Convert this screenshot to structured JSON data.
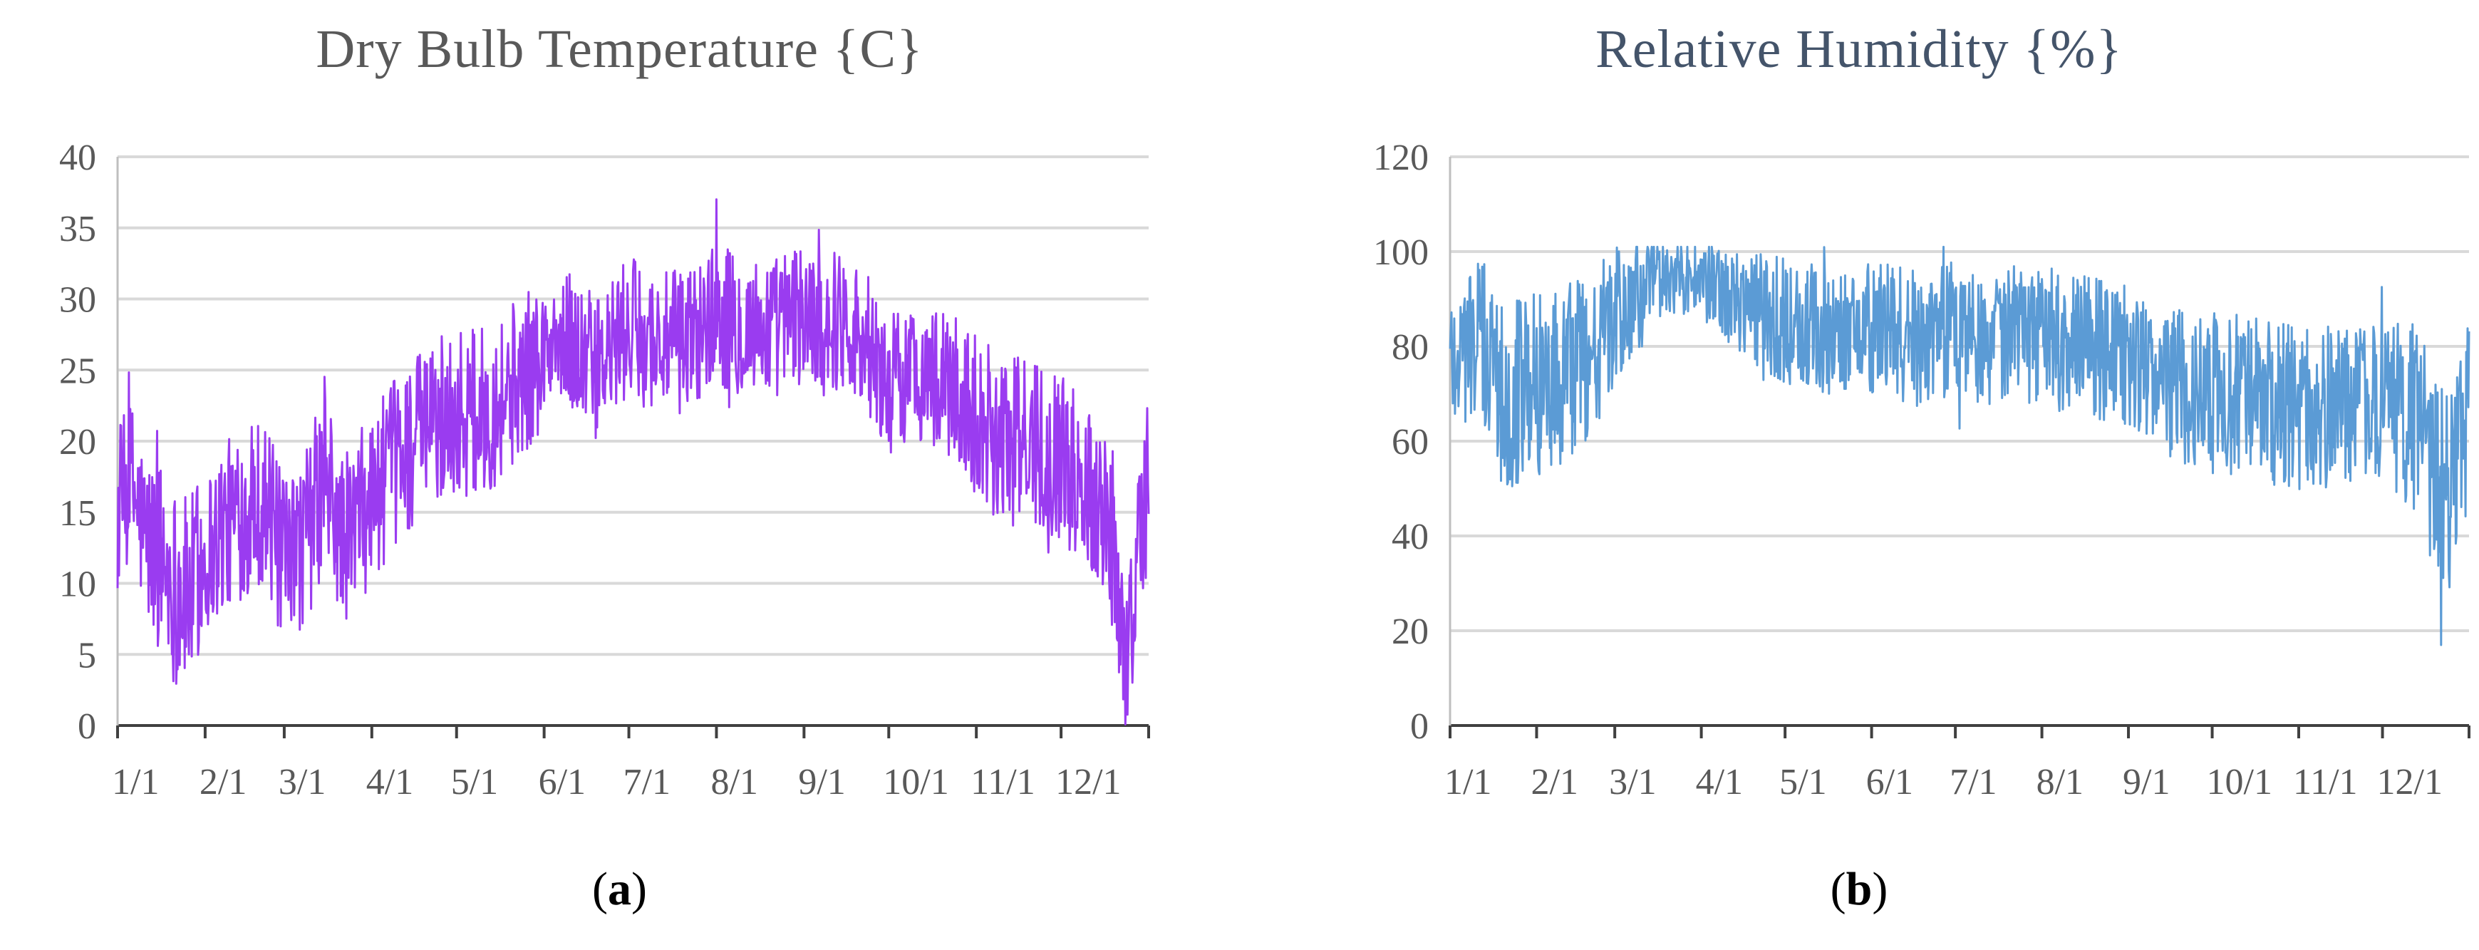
{
  "chart_data": [
    {
      "type": "line",
      "title": "Dry Bulb Temperature {C}",
      "caption_letter": "a",
      "xlabel": "",
      "ylabel": "",
      "ylim": [
        0,
        40
      ],
      "y_ticks": [
        0,
        5,
        10,
        15,
        20,
        25,
        30,
        35,
        40
      ],
      "x_tick_labels": [
        "1/1",
        "2/1",
        "3/1",
        "4/1",
        "5/1",
        "6/1",
        "7/1",
        "8/1",
        "9/1",
        "10/1",
        "11/1",
        "12/1"
      ],
      "x_tick_days": [
        0,
        31,
        59,
        90,
        120,
        151,
        181,
        212,
        243,
        273,
        304,
        334
      ],
      "x_range_days": [
        0,
        365
      ],
      "grid": "horizontal",
      "color": "#9a3cf0",
      "series": [
        {
          "x_days": [
            0,
            5,
            10,
            15,
            20,
            25,
            31,
            38,
            45,
            52,
            59,
            66,
            73,
            80,
            90,
            100,
            110,
            120,
            130,
            140,
            151,
            160,
            170,
            181,
            190,
            200,
            212,
            222,
            232,
            243,
            250,
            258,
            266,
            273,
            283,
            293,
            304,
            314,
            324,
            334,
            342,
            348,
            353,
            357,
            361,
            365
          ],
          "values": [
            15,
            17,
            13,
            12,
            10,
            9,
            12,
            14,
            15,
            16,
            11,
            13,
            17,
            13,
            16,
            19,
            21,
            22,
            22,
            24,
            26,
            27,
            25,
            28,
            27,
            27,
            29,
            28,
            28,
            29,
            28,
            29,
            26,
            24,
            25,
            24,
            22,
            20,
            20,
            19,
            17,
            16,
            12,
            4,
            12,
            17
          ],
          "spread": [
            6,
            6,
            6,
            7,
            7,
            7,
            6,
            6,
            6,
            6,
            6,
            6,
            7,
            6,
            6,
            6,
            6,
            6,
            6,
            6,
            5,
            5,
            5,
            5,
            5,
            5,
            5,
            5,
            5,
            5,
            5,
            5,
            5,
            5,
            5,
            5,
            6,
            6,
            6,
            6,
            6,
            6,
            6,
            5,
            6,
            6
          ],
          "peak_value": 37
        }
      ]
    },
    {
      "type": "line",
      "title": "Relative Humidity {%}",
      "caption_letter": "b",
      "xlabel": "",
      "ylabel": "",
      "ylim": [
        0,
        120
      ],
      "y_ticks": [
        0,
        20,
        40,
        60,
        80,
        100,
        120
      ],
      "x_tick_labels": [
        "1/1",
        "2/1",
        "3/1",
        "4/1",
        "5/1",
        "6/1",
        "7/1",
        "8/1",
        "9/1",
        "10/1",
        "11/1",
        "12/1"
      ],
      "x_tick_days": [
        0,
        31,
        59,
        90,
        120,
        151,
        181,
        212,
        243,
        273,
        304,
        334
      ],
      "x_range_days": [
        0,
        365
      ],
      "grid": "horizontal",
      "color": "#5b9bd5",
      "series": [
        {
          "x_days": [
            0,
            10,
            20,
            31,
            45,
            59,
            70,
            80,
            90,
            100,
            110,
            120,
            135,
            151,
            165,
            181,
            195,
            212,
            227,
            243,
            258,
            273,
            288,
            304,
            319,
            334,
            345,
            352,
            358,
            365
          ],
          "values": [
            78,
            82,
            70,
            72,
            75,
            85,
            92,
            95,
            94,
            90,
            88,
            85,
            83,
            84,
            82,
            84,
            82,
            82,
            80,
            78,
            72,
            70,
            70,
            66,
            68,
            68,
            65,
            55,
            50,
            65
          ],
          "spread": [
            16,
            18,
            20,
            20,
            19,
            16,
            12,
            8,
            8,
            10,
            12,
            14,
            14,
            14,
            15,
            14,
            15,
            15,
            15,
            15,
            16,
            17,
            17,
            18,
            17,
            17,
            20,
            22,
            22,
            20
          ],
          "min_value": 17
        }
      ]
    }
  ]
}
